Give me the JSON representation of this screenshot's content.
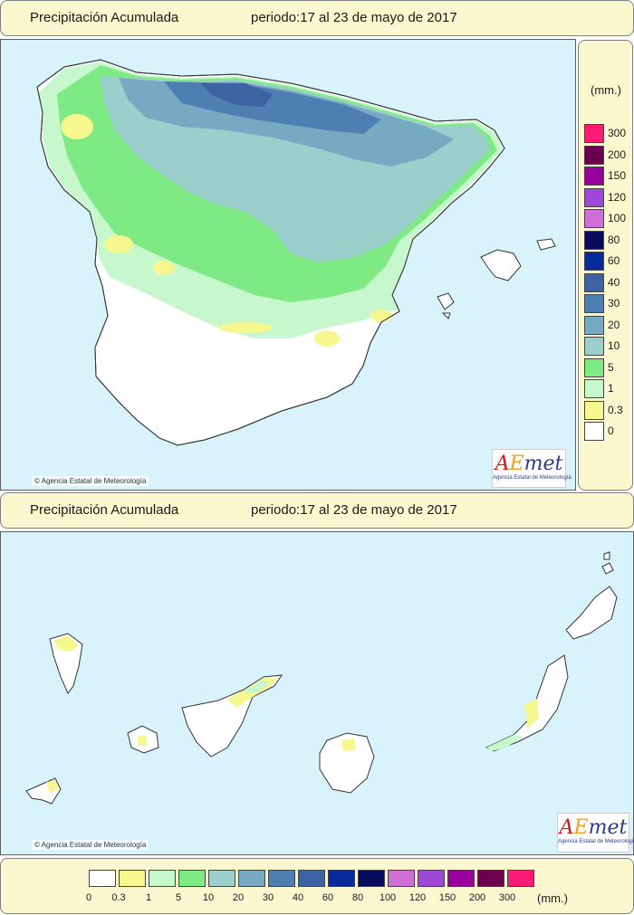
{
  "top_panel": {
    "title": "Precipitación Acumulada",
    "period": "periodo:17 al 23 de mayo de 2017"
  },
  "bottom_panel": {
    "title": "Precipitación Acumulada",
    "period": "periodo:17 al 23 de mayo de 2017"
  },
  "copyright_peninsula": "© Agencia Estatal de Meteorología",
  "copyright_canarias": "© Agencia Estatal de Meteorología",
  "logo": {
    "a": "A",
    "e": "E",
    "met": "met",
    "subtitle": "Agencia Estatal de Meteorología"
  },
  "legend": {
    "unit": "(mm.)",
    "vertical_labels": [
      "300",
      "200",
      "150",
      "120",
      "100",
      "80",
      "60",
      "40",
      "30",
      "20",
      "10",
      "5",
      "1",
      "0.3",
      "0"
    ],
    "horizontal_labels": [
      "0",
      "0.3",
      "1",
      "5",
      "10",
      "20",
      "30",
      "40",
      "60",
      "80",
      "100",
      "120",
      "150",
      "200",
      "300"
    ],
    "colors_high_to_low": [
      "#ff1a75",
      "#6b0050",
      "#98009c",
      "#9d48d7",
      "#cd6fd7",
      "#0a0a5c",
      "#082b9c",
      "#3d63a3",
      "#4f7eb3",
      "#78a9c2",
      "#9bcfcb",
      "#7eea84",
      "#c7f7cc",
      "#f7f78f",
      "#ffffff"
    ],
    "colors_low_to_high": [
      "#ffffff",
      "#f7f78f",
      "#c7f7cc",
      "#7eea84",
      "#9bcfcb",
      "#78a9c2",
      "#4f7eb3",
      "#3d63a3",
      "#082b9c",
      "#0a0a5c",
      "#cd6fd7",
      "#9d48d7",
      "#98009c",
      "#6b0050",
      "#ff1a75"
    ]
  }
}
